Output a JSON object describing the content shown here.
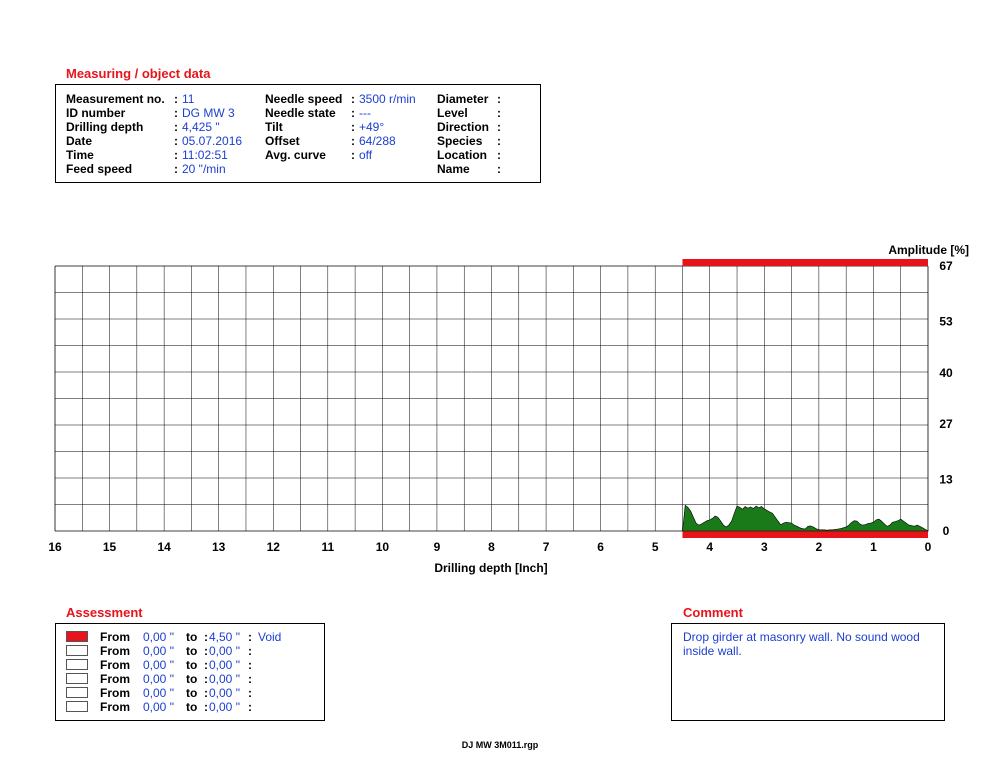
{
  "measuring": {
    "title": "Measuring / object data",
    "col1": [
      {
        "label": "Measurement no.",
        "value": "11"
      },
      {
        "label": "ID number",
        "value": "DG MW 3"
      },
      {
        "label": "Drilling depth",
        "value": "4,425 \""
      },
      {
        "label": "Date",
        "value": "05.07.2016"
      },
      {
        "label": "Time",
        "value": "11:02:51"
      },
      {
        "label": "Feed speed",
        "value": "20 \"/min"
      }
    ],
    "col2": [
      {
        "label": "Needle speed",
        "value": "3500 r/min"
      },
      {
        "label": "Needle state",
        "value": "---"
      },
      {
        "label": "Tilt",
        "value": "+49°"
      },
      {
        "label": "Offset",
        "value": "64/288"
      },
      {
        "label": "Avg. curve",
        "value": "off"
      }
    ],
    "col3": [
      {
        "label": "Diameter",
        "value": ""
      },
      {
        "label": "Level",
        "value": ""
      },
      {
        "label": "Direction",
        "value": ""
      },
      {
        "label": "Species",
        "value": ""
      },
      {
        "label": "Location",
        "value": ""
      },
      {
        "label": "Name",
        "value": ""
      }
    ]
  },
  "chart_data": {
    "type": "area",
    "ylabel": "Amplitude [%]",
    "xlabel": "Drilling depth [Inch]",
    "xlim": [
      16,
      0
    ],
    "ylim": [
      0,
      67
    ],
    "x_ticks": [
      "16",
      "15",
      "14",
      "13",
      "12",
      "11",
      "10",
      "9",
      "8",
      "7",
      "6",
      "5",
      "4",
      "3",
      "2",
      "1",
      "0"
    ],
    "y_ticks": [
      "0",
      "13",
      "27",
      "40",
      "53",
      "67"
    ],
    "grid": true,
    "assessment_bar": {
      "from": 0,
      "to": 4.5,
      "color": "#e8141c"
    },
    "fill_color": "#1a7a1a",
    "series": [
      {
        "x": [
          4.5,
          4.45,
          4.4,
          4.35,
          4.3,
          4.25,
          4.2,
          4.15,
          4.1,
          4.05,
          4.0,
          3.95,
          3.9,
          3.85,
          3.8,
          3.75,
          3.7,
          3.65,
          3.6,
          3.55,
          3.5,
          3.45,
          3.4,
          3.35,
          3.3,
          3.25,
          3.2,
          3.15,
          3.1,
          3.05,
          3.0,
          2.95,
          2.9,
          2.85,
          2.8,
          2.75,
          2.7,
          2.65,
          2.6,
          2.55,
          2.5,
          2.45,
          2.4,
          2.35,
          2.3,
          2.25,
          2.2,
          2.15,
          2.1,
          2.05,
          2.0,
          1.95,
          1.9,
          1.85,
          1.8,
          1.75,
          1.7,
          1.65,
          1.6,
          1.55,
          1.5,
          1.45,
          1.4,
          1.35,
          1.3,
          1.25,
          1.2,
          1.15,
          1.1,
          1.05,
          1.0,
          0.95,
          0.9,
          0.85,
          0.8,
          0.75,
          0.7,
          0.65,
          0.6,
          0.55,
          0.5,
          0.45,
          0.4,
          0.35,
          0.3,
          0.25,
          0.2,
          0.15,
          0.1,
          0.05,
          0.0
        ],
        "y": [
          0,
          6.5,
          6,
          5,
          3.5,
          2,
          1.5,
          1.8,
          2.2,
          2.6,
          2.8,
          3.2,
          3.8,
          3.5,
          2.5,
          1.5,
          1,
          1.5,
          2.5,
          4.5,
          6.3,
          6,
          5.5,
          6.2,
          5.8,
          6.1,
          5.7,
          6.3,
          5.9,
          6.2,
          5.6,
          5.2,
          4.8,
          4.5,
          3.5,
          2.5,
          1.6,
          2,
          2.2,
          2.1,
          2,
          1.5,
          1.2,
          0.8,
          0.6,
          0.5,
          1.2,
          1.3,
          1,
          0.6,
          0.3,
          0.3,
          0.3,
          0.2,
          0.3,
          0.3,
          0.4,
          0.5,
          0.6,
          0.8,
          1,
          1.5,
          2.2,
          2.6,
          2.5,
          1.8,
          1.5,
          1.6,
          1.9,
          2,
          2.2,
          2.8,
          3,
          2.5,
          1.8,
          1.2,
          1.5,
          2.2,
          2.4,
          2.6,
          3,
          2.5,
          2,
          1.5,
          1.4,
          1.2,
          1.5,
          1.2,
          0.8,
          0.4,
          0
        ]
      }
    ]
  },
  "assessment": {
    "title": "Assessment",
    "rows": [
      {
        "color": "#e8141c",
        "from_label": "From",
        "from": "0,00 \"",
        "to_label": "to",
        "to": "4,50 \"",
        "note": "Void"
      },
      {
        "color": "#ffffff",
        "from_label": "From",
        "from": "0,00 \"",
        "to_label": "to",
        "to": "0,00 \"",
        "note": ""
      },
      {
        "color": "#ffffff",
        "from_label": "From",
        "from": "0,00 \"",
        "to_label": "to",
        "to": "0,00 \"",
        "note": ""
      },
      {
        "color": "#ffffff",
        "from_label": "From",
        "from": "0,00 \"",
        "to_label": "to",
        "to": "0,00 \"",
        "note": ""
      },
      {
        "color": "#ffffff",
        "from_label": "From",
        "from": "0,00 \"",
        "to_label": "to",
        "to": "0,00 \"",
        "note": ""
      },
      {
        "color": "#ffffff",
        "from_label": "From",
        "from": "0,00 \"",
        "to_label": "to",
        "to": "0,00 \"",
        "note": ""
      }
    ]
  },
  "comment": {
    "title": "Comment",
    "text": "Drop girder at masonry wall. No sound wood inside wall."
  },
  "footer": {
    "filename": "DJ MW 3M011.rgp"
  }
}
